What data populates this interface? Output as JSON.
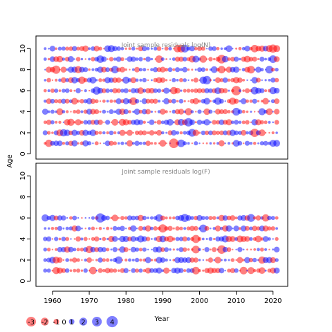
{
  "chart_data": {
    "type": "scatter",
    "subtype": "bubble-residuals",
    "ylabel": "Age",
    "xlabel": "Year",
    "x_range": [
      1955.5,
      2024
    ],
    "x_ticks": [
      1960,
      1970,
      1980,
      1990,
      2000,
      2010,
      2020
    ],
    "colors": {
      "positive": "#0000ff",
      "negative": "#ff0000",
      "alpha": 0.5,
      "panel_title": "#808080"
    },
    "panels": [
      {
        "title": "Joint sample residuals log(N)",
        "y_range": [
          -0.5,
          11.2
        ],
        "y_ticks": [
          0,
          2,
          4,
          6,
          8,
          10
        ],
        "years": [
          1958,
          2021
        ],
        "ages": [
          1,
          10
        ]
      },
      {
        "title": "Joint sample residuals log(F)",
        "y_range": [
          -0.5,
          11.2
        ],
        "y_ticks": [
          0,
          2,
          4,
          6,
          8,
          10
        ],
        "years": [
          1958,
          2021
        ],
        "ages": [
          1,
          6
        ]
      }
    ],
    "legend": {
      "position": "bottom-left",
      "entries": [
        {
          "label": "-3",
          "value": -3
        },
        {
          "label": "-2",
          "value": -2
        },
        {
          "label": "-1",
          "value": -1
        },
        {
          "label": "0",
          "value": 0
        },
        {
          "label": "1",
          "value": 1
        },
        {
          "label": "2",
          "value": 2
        },
        {
          "label": "3",
          "value": 3
        },
        {
          "label": "4",
          "value": 4
        }
      ]
    }
  }
}
